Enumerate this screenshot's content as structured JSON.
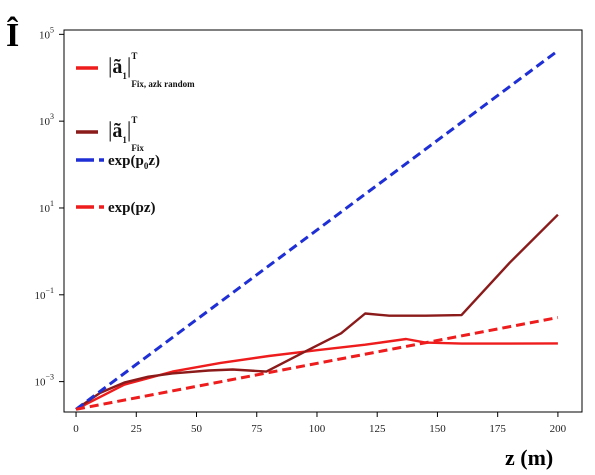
{
  "chart_data": {
    "type": "line",
    "title": "",
    "xlabel": "z (m)",
    "ylabel": "Î",
    "xlim": [
      -5,
      210
    ],
    "ylim_log10": [
      -3.7,
      5.1
    ],
    "yscale": "log",
    "grid": false,
    "legend_position": "top-left",
    "x_ticks": [
      0,
      25,
      50,
      75,
      100,
      125,
      150,
      175,
      200
    ],
    "x_tick_labels": [
      "0",
      "25",
      "50",
      "75",
      "100",
      "125",
      "150",
      "175",
      "200"
    ],
    "y_ticks_log10": [
      -3,
      -1,
      1,
      3,
      5
    ],
    "y_tick_labels": [
      {
        "base": "10",
        "exp": "−3"
      },
      {
        "base": "10",
        "exp": "−1"
      },
      {
        "base": "10",
        "exp": "1"
      },
      {
        "base": "10",
        "exp": "3"
      },
      {
        "base": "10",
        "exp": "5"
      }
    ],
    "series": [
      {
        "legend": {
          "main": "|ã",
          "sub": "1",
          "sup": "T",
          "sub2": "Fix, azk random"
        },
        "color": "#ee1c1c",
        "dash": "solid",
        "x": [
          0,
          20,
          40,
          60,
          80,
          100,
          120,
          137,
          145,
          160,
          180,
          200
        ],
        "y": [
          0.00023,
          0.00085,
          0.0017,
          0.0027,
          0.0039,
          0.0053,
          0.0071,
          0.0096,
          0.0079,
          0.0075,
          0.0075,
          0.0076
        ]
      },
      {
        "legend": {
          "main": "|ã",
          "sub": "1",
          "sup": "T",
          "sub2": "Fix"
        },
        "color": "#8b1a1a",
        "dash": "solid",
        "x": [
          0,
          10,
          20,
          30,
          40,
          55,
          65,
          79,
          95,
          110,
          120,
          130,
          145,
          160,
          180,
          200
        ],
        "y": [
          0.00023,
          0.00055,
          0.00095,
          0.0013,
          0.00155,
          0.0018,
          0.0019,
          0.0017,
          0.0049,
          0.013,
          0.037,
          0.033,
          0.033,
          0.034,
          0.55,
          7.0
        ]
      },
      {
        "legend": {
          "main": "exp(p",
          "sub": "0",
          "tail": "z)"
        },
        "color": "#1f2fd6",
        "dash": "dashed",
        "x": [
          0,
          200
        ],
        "y": [
          0.00023,
          42000
        ]
      },
      {
        "legend": {
          "main": "exp(pz)"
        },
        "color": "#ee1c1c",
        "dash": "dashed",
        "x": [
          0,
          200
        ],
        "y": [
          0.00023,
          0.03
        ]
      }
    ]
  }
}
